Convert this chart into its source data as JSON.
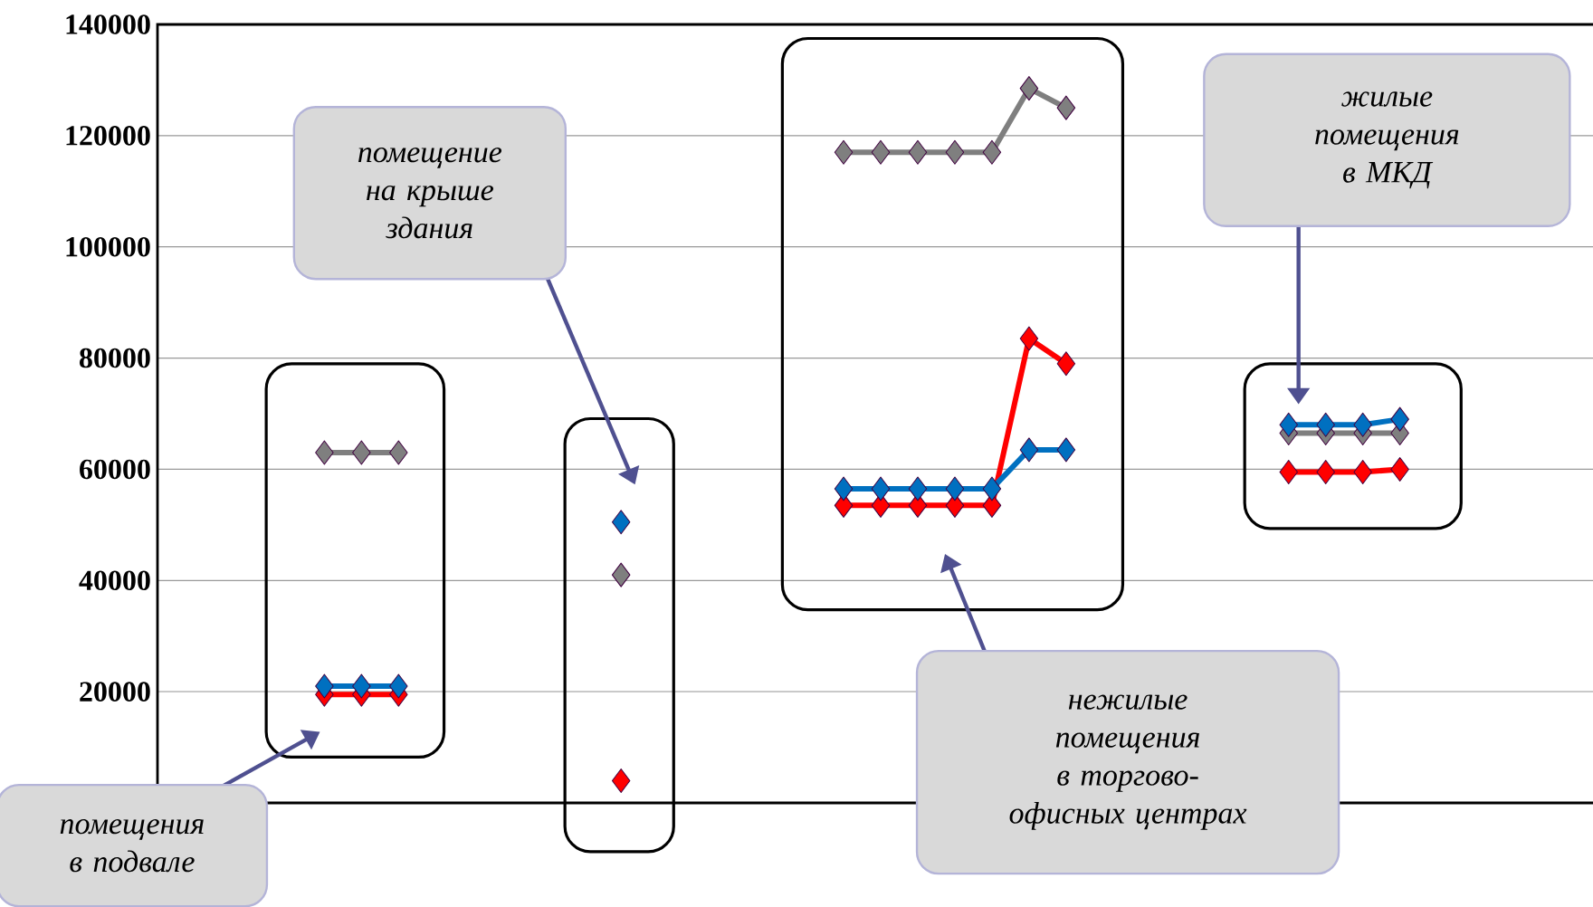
{
  "chart_data": {
    "type": "line",
    "categories": [
      null,
      null,
      null,
      null,
      null,
      null,
      null,
      null,
      null,
      null,
      null,
      null,
      null,
      null,
      null,
      null,
      null,
      null,
      null,
      null,
      null,
      null,
      null,
      null,
      null,
      null,
      null,
      null,
      null,
      null,
      null,
      null,
      null,
      null,
      null,
      null,
      null,
      null,
      null
    ],
    "series": [
      {
        "color": "#7f7f7f",
        "values": [
          null,
          null,
          null,
          null,
          63000,
          63000,
          63000,
          null,
          null,
          null,
          null,
          null,
          41000,
          null,
          null,
          null,
          null,
          null,
          117000,
          117000,
          117000,
          117000,
          117000,
          128500,
          125000,
          null,
          null,
          null,
          null,
          null,
          66500,
          66500,
          66500,
          66500,
          null,
          null,
          null,
          null,
          null
        ]
      },
      {
        "color": "#ff0000",
        "values": [
          null,
          null,
          null,
          null,
          19500,
          19500,
          19500,
          null,
          null,
          null,
          null,
          null,
          4000,
          null,
          null,
          null,
          null,
          null,
          53500,
          53500,
          53500,
          53500,
          53500,
          83500,
          79000,
          null,
          null,
          null,
          null,
          null,
          59500,
          59500,
          59500,
          60000,
          null,
          null,
          null,
          null,
          null
        ]
      },
      {
        "color": "#0070c0",
        "values": [
          null,
          null,
          null,
          null,
          21000,
          21000,
          21000,
          null,
          null,
          null,
          null,
          null,
          50500,
          null,
          null,
          null,
          null,
          null,
          56500,
          56500,
          56500,
          56500,
          56500,
          63500,
          63500,
          null,
          null,
          null,
          null,
          null,
          68000,
          68000,
          68000,
          69000,
          null,
          null,
          null,
          null,
          null
        ]
      }
    ],
    "ylim": [
      0,
      140000
    ],
    "yticks": [
      20000,
      40000,
      60000,
      80000,
      100000,
      120000,
      140000
    ],
    "grid": "y",
    "marker": "diamond",
    "line_style": "solid",
    "tick_labels": "y",
    "annotations": [
      "помещение на крыше здания",
      "жилые помещения в МКД",
      "нежилые помещения в торгово-офисных центрах",
      "помещения в подвале"
    ]
  }
}
